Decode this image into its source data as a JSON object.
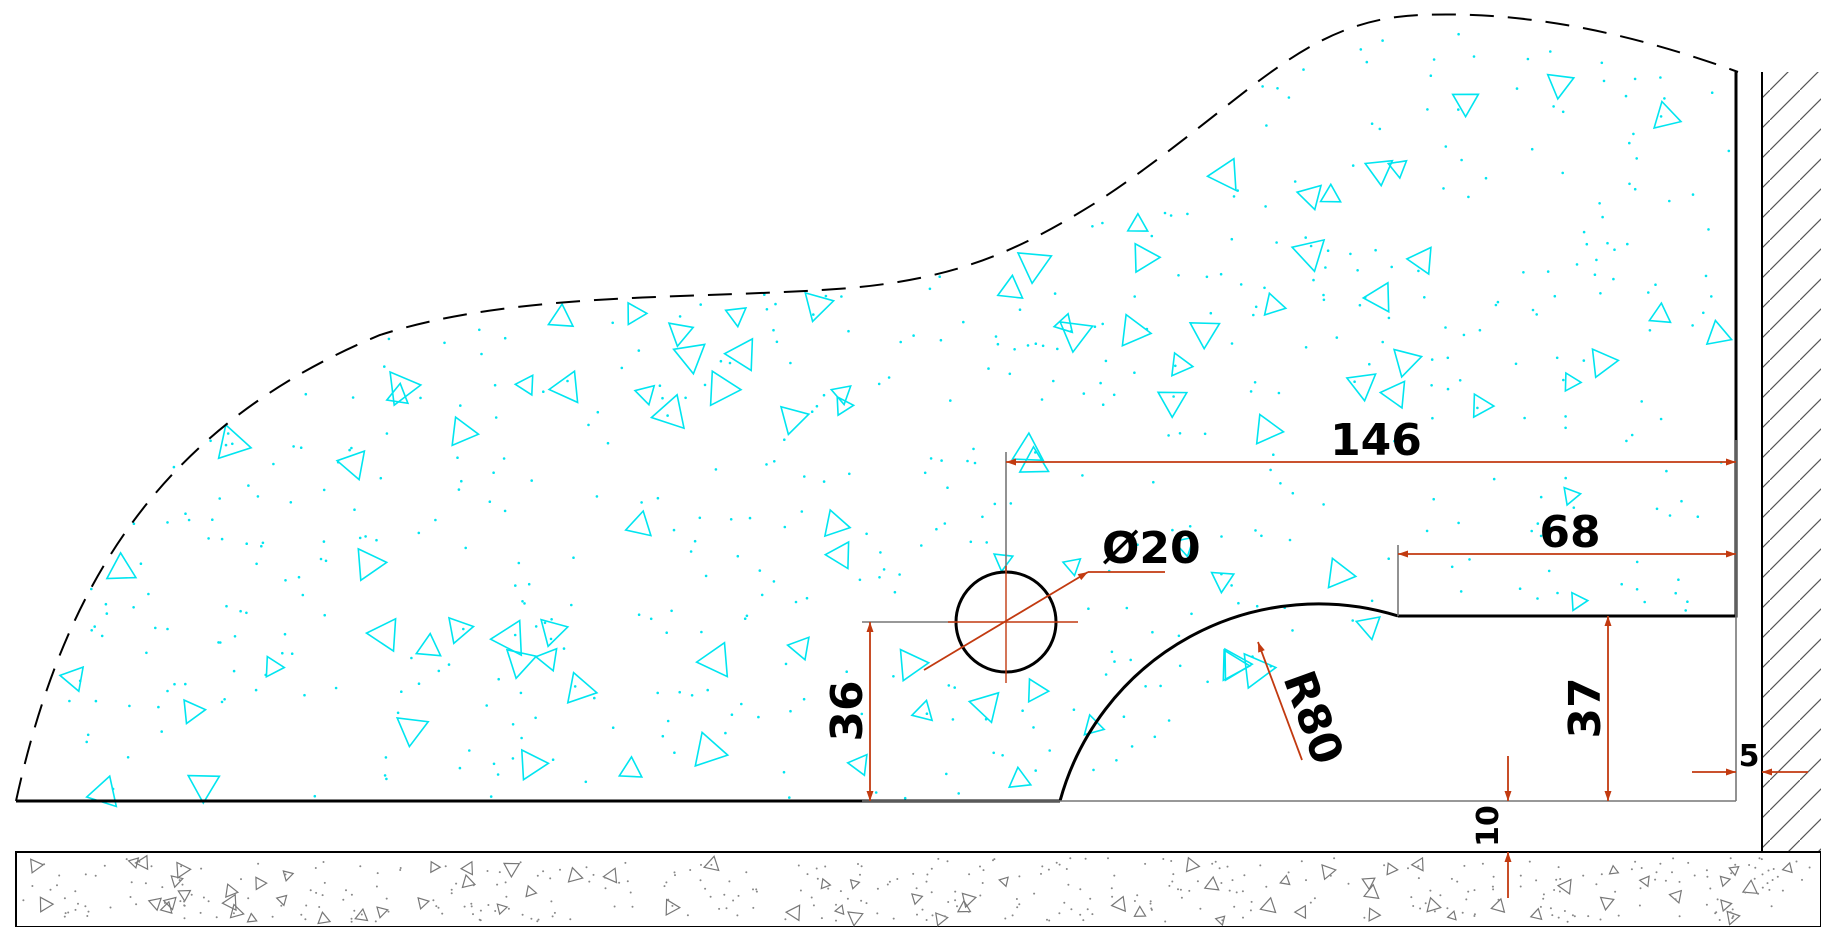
{
  "dimensions": {
    "length_total": "146",
    "length_step": "68",
    "hole_diameter": "Ø20",
    "hole_height": "36",
    "fillet_radius": "R80",
    "step_height": "37",
    "gap_bottom": "10",
    "gap_wall": "5"
  },
  "colors": {
    "dimension": "#c23a10",
    "outline": "#000000",
    "fill_pattern": "#00e5f0",
    "extension": "#777777"
  }
}
